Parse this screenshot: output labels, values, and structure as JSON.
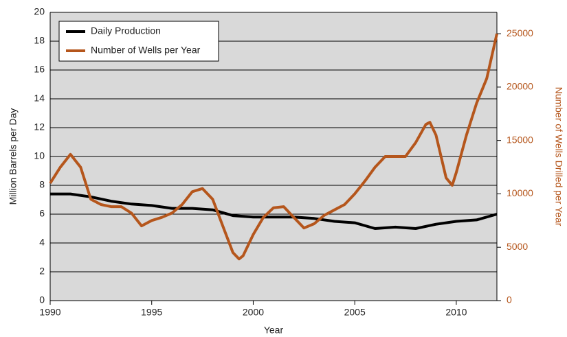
{
  "chart_data": {
    "type": "line",
    "x_label": "Year",
    "y_label": "Million Barrels per Day",
    "y2_label": "Number of Wells Drilled per Year",
    "xlim": [
      1990,
      2012
    ],
    "xticks": [
      1990,
      1995,
      2000,
      2005,
      2010
    ],
    "ylim": [
      0,
      20
    ],
    "yticks": [
      0,
      2,
      4,
      6,
      8,
      10,
      12,
      14,
      16,
      18,
      20
    ],
    "y2lim": [
      0,
      27000
    ],
    "y2ticks": [
      0,
      5000,
      10000,
      15000,
      20000,
      25000
    ],
    "grid": true,
    "legend": "top-left",
    "series": [
      {
        "name": "Daily Production",
        "color": "#000000",
        "x": [
          1990,
          1991,
          1992,
          1993,
          1994,
          1995,
          1996,
          1997,
          1998,
          1999,
          2000,
          2001,
          2002,
          2003,
          2004,
          2005,
          2006,
          2007,
          2008,
          2009,
          2010,
          2011,
          2012
        ],
        "values": [
          7.4,
          7.4,
          7.2,
          6.9,
          6.7,
          6.6,
          6.4,
          6.4,
          6.3,
          5.9,
          5.8,
          5.8,
          5.8,
          5.7,
          5.5,
          5.4,
          5.0,
          5.1,
          5.0,
          5.3,
          5.5,
          5.6,
          6.0
        ]
      },
      {
        "name": "Number of Wells per Year",
        "color": "#b5561c",
        "axis": "y2",
        "x": [
          1990,
          1990.5,
          1991,
          1991.5,
          1992,
          1992.5,
          1993,
          1993.5,
          1994,
          1994.5,
          1995,
          1995.5,
          1996,
          1996.5,
          1997,
          1997.5,
          1998,
          1998.5,
          1999,
          1999.3,
          1999.5,
          2000,
          2000.5,
          2001,
          2001.5,
          2002,
          2002.5,
          2003,
          2003.5,
          2004,
          2004.5,
          2005,
          2005.5,
          2006,
          2006.5,
          2007,
          2007.5,
          2008,
          2008.5,
          2008.7,
          2009,
          2009.5,
          2009.8,
          2010,
          2010.5,
          2011,
          2011.5,
          2012
        ],
        "values": [
          11000,
          12500,
          13700,
          12500,
          9500,
          9000,
          8800,
          8800,
          8200,
          7000,
          7500,
          7800,
          8200,
          9000,
          10200,
          10500,
          9500,
          7000,
          4500,
          3900,
          4200,
          6200,
          7800,
          8700,
          8800,
          7800,
          6800,
          7200,
          8000,
          8500,
          9000,
          10000,
          11200,
          12500,
          13500,
          13500,
          13500,
          14800,
          16500,
          16700,
          15500,
          11500,
          10800,
          12000,
          15500,
          18500,
          20800,
          25000
        ]
      }
    ]
  }
}
